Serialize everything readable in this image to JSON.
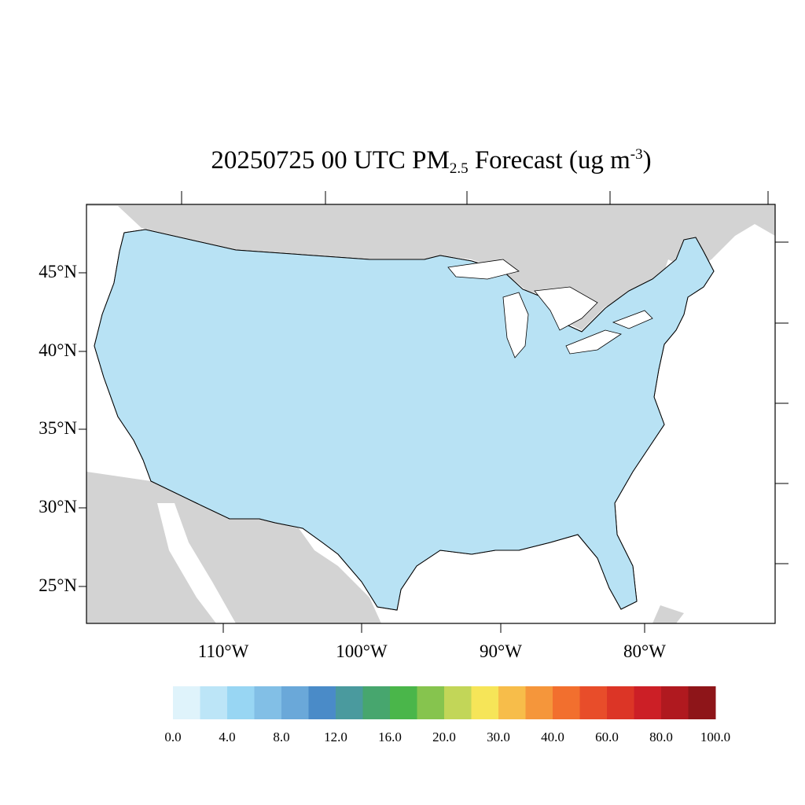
{
  "title": {
    "prefix": "20250725 00 UTC PM",
    "sub": "2.5",
    "middle": " Forecast (ug m",
    "sup": "-3",
    "suffix": ")"
  },
  "map": {
    "lat_ticks": [
      "45°N",
      "40°N",
      "35°N",
      "30°N",
      "25°N"
    ],
    "lon_ticks": [
      "110°W",
      "100°W",
      "90°W",
      "80°W"
    ],
    "colors": {
      "land": "#d3d3d3",
      "water": "#ffffff",
      "border": "#000000"
    }
  },
  "colorbar": {
    "colors": [
      "#dff3fb",
      "#bce5f7",
      "#98d6f3",
      "#82bfe6",
      "#6aa8d9",
      "#4a8bc8",
      "#4a9a9e",
      "#47a66e",
      "#4ab64a",
      "#86c44e",
      "#c2d658",
      "#f6e558",
      "#f7bd4a",
      "#f5963b",
      "#f26f2e",
      "#e84d2a",
      "#dc3526",
      "#cc1f26",
      "#b0191f",
      "#8e1519"
    ],
    "labels": [
      "0.0",
      "4.0",
      "8.0",
      "12.0",
      "16.0",
      "20.0",
      "30.0",
      "40.0",
      "60.0",
      "80.0",
      "100.0"
    ]
  }
}
